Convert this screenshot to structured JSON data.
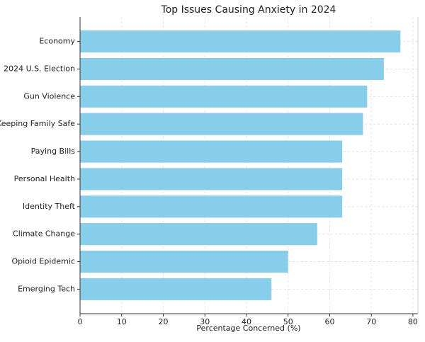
{
  "chart_data": {
    "type": "barh",
    "title": "Top Issues Causing Anxiety in 2024",
    "x_label": "Percentage Concerned (%)",
    "categories": [
      "Economy",
      "2024 U.S. Election",
      "Gun Violence",
      "Keeping Family Safe",
      "Paying Bills",
      "Personal Health",
      "Identity Theft",
      "Climate Change",
      "Opioid Epidemic",
      "Emerging Tech"
    ],
    "values": [
      77,
      73,
      69,
      68,
      63,
      63,
      63,
      57,
      50,
      46
    ],
    "color": "#87ceeb",
    "xlim": [
      0,
      81.2
    ],
    "xticks": [
      0,
      10,
      20,
      30,
      40,
      50,
      60,
      70,
      80
    ],
    "grid": true
  }
}
